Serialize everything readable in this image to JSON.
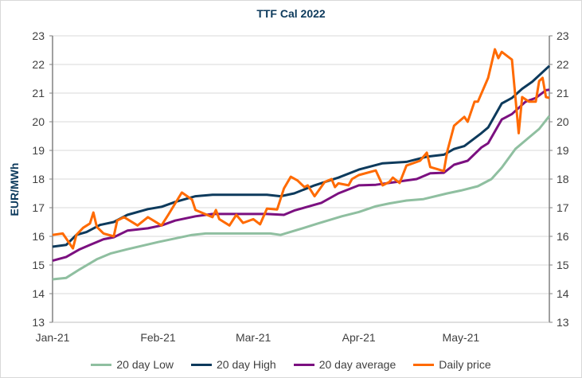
{
  "chart_data": {
    "type": "line",
    "title": "TTF Cal 2022",
    "ylabel": "EUR/MWh",
    "xlabel": "",
    "ylim": [
      13,
      23
    ],
    "yticks": [
      13,
      14,
      15,
      16,
      17,
      18,
      19,
      20,
      21,
      22,
      23
    ],
    "y_axis_mirrored_right": true,
    "xlim": [
      "2021-01-01",
      "2021-05-27"
    ],
    "xticks": [
      {
        "date": "2021-01-01",
        "label": "Jan-21"
      },
      {
        "date": "2021-02-01",
        "label": "Feb-21"
      },
      {
        "date": "2021-03-01",
        "label": "Mar-21"
      },
      {
        "date": "2021-04-01",
        "label": "Apr-21"
      },
      {
        "date": "2021-05-01",
        "label": "May-21"
      }
    ],
    "grid": "horizontal",
    "legend": "bottom",
    "series": [
      {
        "name": "20 day Low",
        "color": "#8fbfa0",
        "points": [
          [
            "2021-01-01",
            14.5
          ],
          [
            "2021-01-05",
            14.55
          ],
          [
            "2021-01-09",
            14.85
          ],
          [
            "2021-01-14",
            15.2
          ],
          [
            "2021-01-18",
            15.4
          ],
          [
            "2021-01-23",
            15.55
          ],
          [
            "2021-02-01",
            15.8
          ],
          [
            "2021-02-11",
            16.05
          ],
          [
            "2021-02-15",
            16.1
          ],
          [
            "2021-02-22",
            16.1
          ],
          [
            "2021-03-06",
            16.1
          ],
          [
            "2021-03-09",
            16.05
          ],
          [
            "2021-03-16",
            16.3
          ],
          [
            "2021-03-20",
            16.45
          ],
          [
            "2021-03-27",
            16.7
          ],
          [
            "2021-04-01",
            16.85
          ],
          [
            "2021-04-06",
            17.05
          ],
          [
            "2021-04-10",
            17.15
          ],
          [
            "2021-04-15",
            17.25
          ],
          [
            "2021-04-20",
            17.3
          ],
          [
            "2021-04-27",
            17.5
          ],
          [
            "2021-05-01",
            17.6
          ],
          [
            "2021-05-06",
            17.75
          ],
          [
            "2021-05-10",
            18.0
          ],
          [
            "2021-05-13",
            18.4
          ],
          [
            "2021-05-17",
            19.05
          ],
          [
            "2021-05-20",
            19.35
          ],
          [
            "2021-05-24",
            19.75
          ],
          [
            "2021-05-27",
            20.2
          ]
        ]
      },
      {
        "name": "20 day High",
        "color": "#0d3a5c",
        "points": [
          [
            "2021-01-01",
            15.64
          ],
          [
            "2021-01-05",
            15.7
          ],
          [
            "2021-01-08",
            16.05
          ],
          [
            "2021-01-11",
            16.15
          ],
          [
            "2021-01-15",
            16.4
          ],
          [
            "2021-01-19",
            16.5
          ],
          [
            "2021-01-23",
            16.75
          ],
          [
            "2021-01-29",
            16.95
          ],
          [
            "2021-02-02",
            17.03
          ],
          [
            "2021-02-06",
            17.2
          ],
          [
            "2021-02-12",
            17.4
          ],
          [
            "2021-02-17",
            17.45
          ],
          [
            "2021-03-05",
            17.45
          ],
          [
            "2021-03-09",
            17.4
          ],
          [
            "2021-03-13",
            17.5
          ],
          [
            "2021-03-19",
            17.78
          ],
          [
            "2021-03-26",
            18.05
          ],
          [
            "2021-04-01",
            18.33
          ],
          [
            "2021-04-08",
            18.55
          ],
          [
            "2021-04-15",
            18.6
          ],
          [
            "2021-04-21",
            18.78
          ],
          [
            "2021-04-26",
            18.85
          ],
          [
            "2021-04-29",
            19.05
          ],
          [
            "2021-05-02",
            19.15
          ],
          [
            "2021-05-07",
            19.6
          ],
          [
            "2021-05-09",
            19.8
          ],
          [
            "2021-05-13",
            20.64
          ],
          [
            "2021-05-16",
            20.83
          ],
          [
            "2021-05-19",
            21.15
          ],
          [
            "2021-05-22",
            21.4
          ],
          [
            "2021-05-27",
            21.95
          ]
        ]
      },
      {
        "name": "20 day average",
        "color": "#7b1080",
        "points": [
          [
            "2021-01-01",
            15.15
          ],
          [
            "2021-01-05",
            15.28
          ],
          [
            "2021-01-09",
            15.55
          ],
          [
            "2021-01-12",
            15.7
          ],
          [
            "2021-01-16",
            15.9
          ],
          [
            "2021-01-19",
            15.97
          ],
          [
            "2021-01-23",
            16.2
          ],
          [
            "2021-01-29",
            16.28
          ],
          [
            "2021-02-02",
            16.38
          ],
          [
            "2021-02-06",
            16.55
          ],
          [
            "2021-02-12",
            16.7
          ],
          [
            "2021-02-17",
            16.78
          ],
          [
            "2021-03-05",
            16.78
          ],
          [
            "2021-03-10",
            16.75
          ],
          [
            "2021-03-13",
            16.9
          ],
          [
            "2021-03-21",
            17.17
          ],
          [
            "2021-03-26",
            17.5
          ],
          [
            "2021-04-01",
            17.78
          ],
          [
            "2021-04-06",
            17.8
          ],
          [
            "2021-04-12",
            17.9
          ],
          [
            "2021-04-18",
            18.0
          ],
          [
            "2021-04-22",
            18.2
          ],
          [
            "2021-04-26",
            18.22
          ],
          [
            "2021-04-29",
            18.5
          ],
          [
            "2021-05-03",
            18.64
          ],
          [
            "2021-05-07",
            19.1
          ],
          [
            "2021-05-09",
            19.25
          ],
          [
            "2021-05-13",
            20.08
          ],
          [
            "2021-05-16",
            20.27
          ],
          [
            "2021-05-20",
            20.7
          ],
          [
            "2021-05-23",
            20.83
          ],
          [
            "2021-05-26",
            21.1
          ],
          [
            "2021-05-27",
            21.12
          ]
        ]
      },
      {
        "name": "Daily price",
        "color": "#ff6a00",
        "points": [
          [
            "2021-01-01",
            16.05
          ],
          [
            "2021-01-04",
            16.1
          ],
          [
            "2021-01-07",
            15.58
          ],
          [
            "2021-01-08",
            16.05
          ],
          [
            "2021-01-10",
            16.3
          ],
          [
            "2021-01-12",
            16.45
          ],
          [
            "2021-01-13",
            16.83
          ],
          [
            "2021-01-14",
            16.33
          ],
          [
            "2021-01-16",
            16.1
          ],
          [
            "2021-01-19",
            16.0
          ],
          [
            "2021-01-20",
            16.55
          ],
          [
            "2021-01-22",
            16.67
          ],
          [
            "2021-01-26",
            16.38
          ],
          [
            "2021-01-29",
            16.67
          ],
          [
            "2021-02-02",
            16.38
          ],
          [
            "2021-02-04",
            16.75
          ],
          [
            "2021-02-08",
            17.53
          ],
          [
            "2021-02-11",
            17.28
          ],
          [
            "2021-02-12",
            16.92
          ],
          [
            "2021-02-17",
            16.67
          ],
          [
            "2021-02-18",
            16.92
          ],
          [
            "2021-02-19",
            16.6
          ],
          [
            "2021-02-22",
            16.38
          ],
          [
            "2021-02-24",
            16.75
          ],
          [
            "2021-02-26",
            16.47
          ],
          [
            "2021-03-01",
            16.6
          ],
          [
            "2021-03-03",
            16.42
          ],
          [
            "2021-03-05",
            16.97
          ],
          [
            "2021-03-08",
            16.94
          ],
          [
            "2021-03-10",
            17.67
          ],
          [
            "2021-03-12",
            18.08
          ],
          [
            "2021-03-14",
            17.95
          ],
          [
            "2021-03-16",
            17.72
          ],
          [
            "2021-03-17",
            17.78
          ],
          [
            "2021-03-19",
            17.4
          ],
          [
            "2021-03-22",
            17.9
          ],
          [
            "2021-03-24",
            18.0
          ],
          [
            "2021-03-25",
            17.72
          ],
          [
            "2021-03-26",
            17.85
          ],
          [
            "2021-03-29",
            17.78
          ],
          [
            "2021-03-30",
            18.0
          ],
          [
            "2021-04-01",
            18.14
          ],
          [
            "2021-04-06",
            18.3
          ],
          [
            "2021-04-08",
            17.78
          ],
          [
            "2021-04-10",
            17.9
          ],
          [
            "2021-04-11",
            18.05
          ],
          [
            "2021-04-13",
            17.86
          ],
          [
            "2021-04-15",
            18.47
          ],
          [
            "2021-04-19",
            18.64
          ],
          [
            "2021-04-21",
            18.92
          ],
          [
            "2021-04-22",
            18.42
          ],
          [
            "2021-04-26",
            18.28
          ],
          [
            "2021-04-27",
            18.97
          ],
          [
            "2021-04-29",
            19.86
          ],
          [
            "2021-05-02",
            20.17
          ],
          [
            "2021-05-03",
            20.0
          ],
          [
            "2021-05-05",
            20.7
          ],
          [
            "2021-05-06",
            20.7
          ],
          [
            "2021-05-09",
            21.53
          ],
          [
            "2021-05-11",
            22.53
          ],
          [
            "2021-05-12",
            22.22
          ],
          [
            "2021-05-13",
            22.44
          ],
          [
            "2021-05-16",
            22.17
          ],
          [
            "2021-05-18",
            19.6
          ],
          [
            "2021-05-19",
            20.86
          ],
          [
            "2021-05-21",
            20.7
          ],
          [
            "2021-05-23",
            20.7
          ],
          [
            "2021-05-24",
            21.42
          ],
          [
            "2021-05-25",
            21.53
          ],
          [
            "2021-05-26",
            20.86
          ],
          [
            "2021-05-27",
            20.83
          ]
        ]
      }
    ]
  }
}
